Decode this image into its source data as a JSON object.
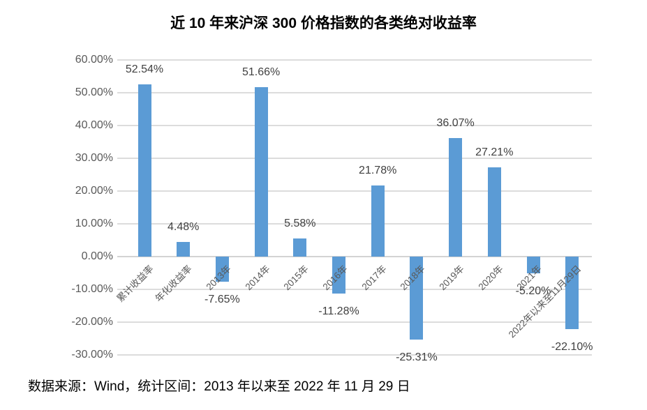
{
  "page": {
    "title": "近 10 年来沪深 300 价格指数的各类绝对收益率",
    "source_note": "数据来源：Wind，统计区间：2013 年以来至 2022 年 11 月 29 日"
  },
  "chart_data": {
    "type": "bar",
    "title": "近 10 年来沪深 300 价格指数的各类绝对收益率",
    "categories": [
      "累计收益率",
      "年化收益率",
      "2013年",
      "2014年",
      "2015年",
      "2016年",
      "2017年",
      "2018年",
      "2019年",
      "2020年",
      "2021年",
      "2022年以来至11月29日"
    ],
    "values": [
      52.54,
      4.48,
      -7.65,
      51.66,
      5.58,
      -11.28,
      21.78,
      -25.31,
      36.07,
      27.21,
      -5.2,
      -22.1
    ],
    "data_labels": [
      "52.54%",
      "4.48%",
      "-7.65%",
      "51.66%",
      "5.58%",
      "-11.28%",
      "21.78%",
      "-25.31%",
      "36.07%",
      "27.21%",
      "-5.20%",
      "-22.10%"
    ],
    "y_ticks": [
      "60.00%",
      "50.00%",
      "40.00%",
      "30.00%",
      "20.00%",
      "10.00%",
      "0.00%",
      "-10.00%",
      "-20.00%",
      "-30.00%"
    ],
    "ylim": [
      -30,
      60
    ],
    "y_step": 10,
    "grid": true,
    "legend": "none",
    "source_note": "数据来源：Wind，统计区间：2013 年以来至 2022 年 11 月 29 日",
    "colors": {
      "bar": "#5B9BD5",
      "gridline": "#DCDCDC",
      "zero_line": "#D3D3D3",
      "axis_text": "#595959",
      "data_label_text": "#404040",
      "title_text": "#000000"
    }
  }
}
